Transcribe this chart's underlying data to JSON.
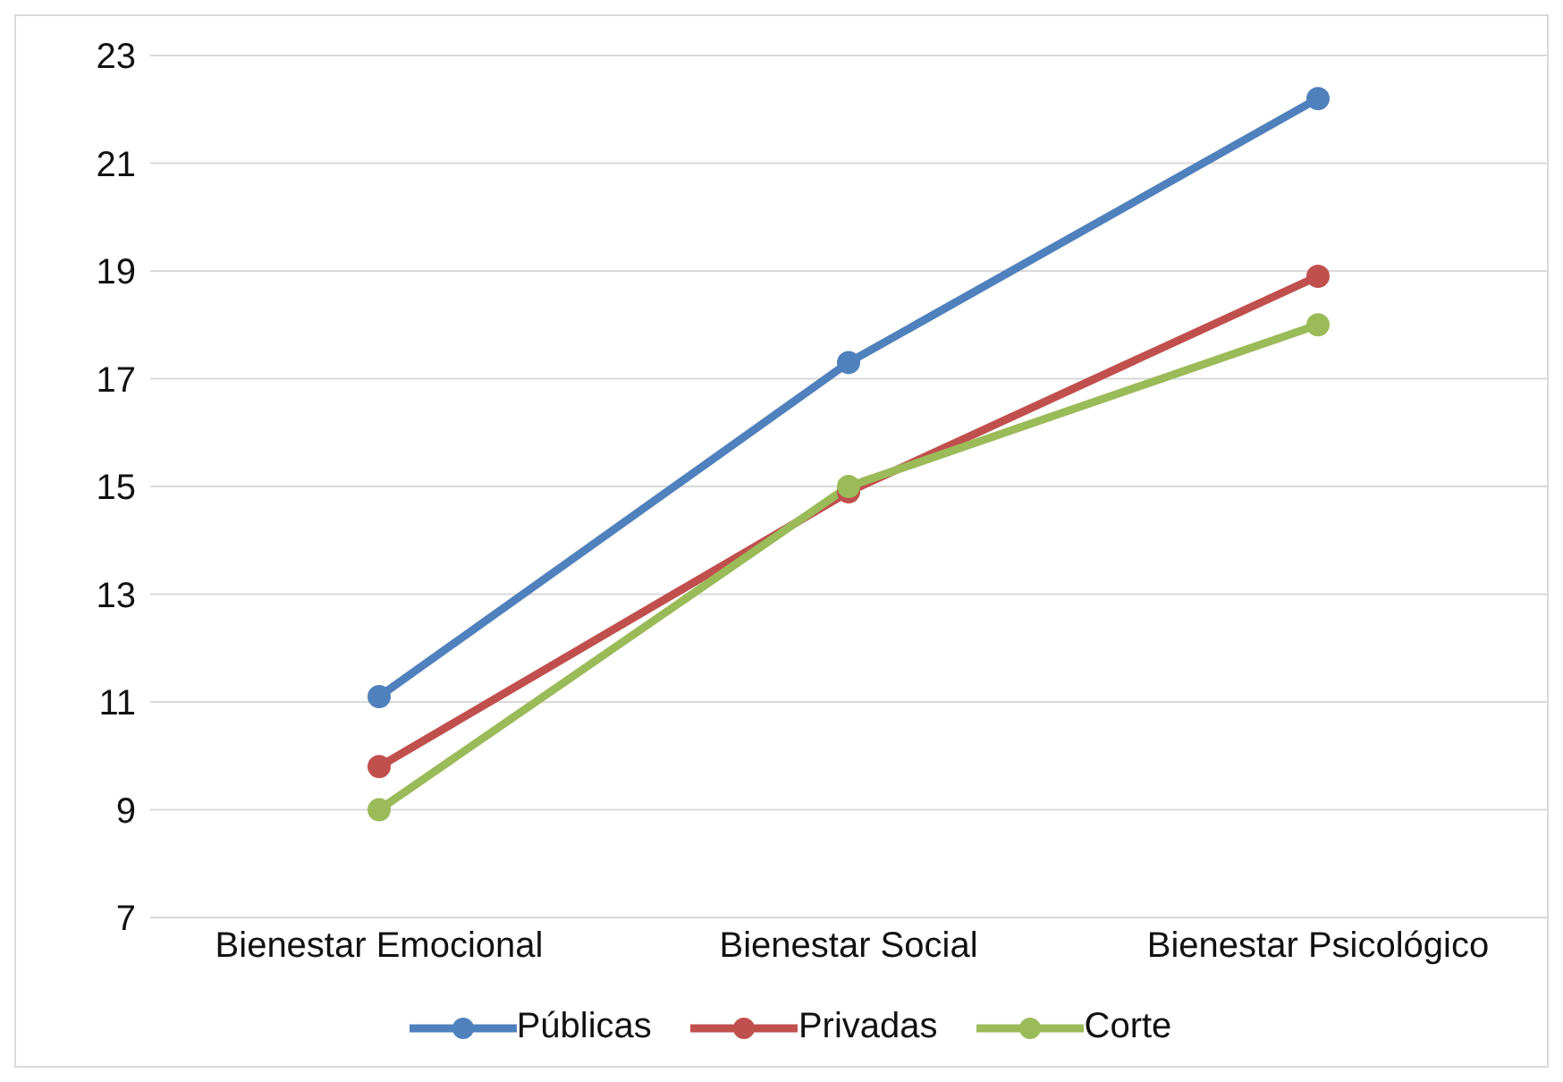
{
  "chart_data": {
    "type": "line",
    "categories": [
      "Bienestar Emocional",
      "Bienestar Social",
      "Bienestar Psicológico"
    ],
    "series": [
      {
        "name": "Públicas",
        "color": "#4f81bd",
        "values": [
          11.1,
          17.3,
          22.2
        ]
      },
      {
        "name": "Privadas",
        "color": "#c0504d",
        "values": [
          9.8,
          14.9,
          18.9
        ]
      },
      {
        "name": "Corte",
        "color": "#9bbb59",
        "values": [
          9.0,
          15.0,
          18.0
        ]
      }
    ],
    "ylim": [
      7,
      23
    ],
    "yticks": [
      7,
      9,
      11,
      13,
      15,
      17,
      19,
      21,
      23
    ],
    "grid": "y",
    "legend": "bottom",
    "marker": "circle",
    "line_style": "solid"
  }
}
